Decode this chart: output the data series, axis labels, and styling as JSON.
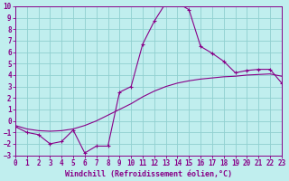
{
  "xlabel": "Windchill (Refroidissement éolien,°C)",
  "bg_color": "#c0eeee",
  "grid_color": "#90d0d0",
  "line_color": "#880088",
  "x_line1": [
    0,
    1,
    2,
    3,
    4,
    5,
    6,
    7,
    8,
    9,
    10,
    11,
    12,
    13,
    14,
    15,
    16,
    17,
    18,
    19,
    20,
    21,
    22,
    23
  ],
  "y_line1": [
    -0.5,
    -1.0,
    -1.2,
    -2.0,
    -1.8,
    -0.8,
    -2.8,
    -2.2,
    -2.2,
    2.5,
    3.0,
    6.7,
    8.7,
    10.3,
    10.3,
    9.7,
    6.5,
    5.9,
    5.2,
    4.2,
    4.4,
    4.5,
    4.5,
    3.3
  ],
  "x_line2": [
    0,
    1,
    2,
    3,
    4,
    5,
    6,
    7,
    8,
    9,
    10,
    11,
    12,
    13,
    14,
    15,
    16,
    17,
    18,
    19,
    20,
    21,
    22,
    23
  ],
  "y_line2": [
    -0.4,
    -0.7,
    -0.85,
    -0.9,
    -0.85,
    -0.7,
    -0.4,
    0.0,
    0.5,
    1.0,
    1.5,
    2.1,
    2.6,
    3.0,
    3.3,
    3.5,
    3.65,
    3.75,
    3.85,
    3.9,
    4.0,
    4.05,
    4.1,
    3.9
  ],
  "xlim": [
    0,
    23
  ],
  "ylim": [
    -3,
    10
  ],
  "yticks": [
    -3,
    -2,
    -1,
    0,
    1,
    2,
    3,
    4,
    5,
    6,
    7,
    8,
    9,
    10
  ],
  "xticks": [
    0,
    1,
    2,
    3,
    4,
    5,
    6,
    7,
    8,
    9,
    10,
    11,
    12,
    13,
    14,
    15,
    16,
    17,
    18,
    19,
    20,
    21,
    22,
    23
  ],
  "tick_fontsize": 5.5,
  "label_fontsize": 6.0
}
